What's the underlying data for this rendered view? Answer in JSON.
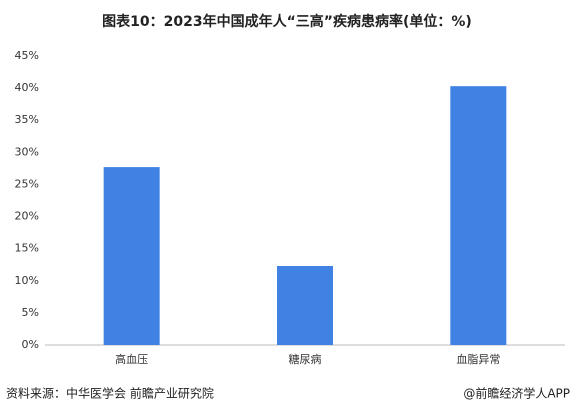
{
  "chart_data": {
    "type": "bar",
    "title": "图表10：2023年中国成年人“三高”疾病患病率(单位：%)",
    "categories": [
      "高血压",
      "糖尿病",
      "血脂异常"
    ],
    "values": [
      27.7,
      12.3,
      40.3
    ],
    "color": "#3f82e3",
    "ylim": [
      0,
      45
    ],
    "yticks": [
      {
        "value": 0,
        "label": "0%"
      },
      {
        "value": 5,
        "label": "5%"
      },
      {
        "value": 10,
        "label": "10%"
      },
      {
        "value": 15,
        "label": "15%"
      },
      {
        "value": 20,
        "label": "20%"
      },
      {
        "value": 25,
        "label": "25%"
      },
      {
        "value": 30,
        "label": "30%"
      },
      {
        "value": 35,
        "label": "35%"
      },
      {
        "value": 40,
        "label": "40%"
      },
      {
        "value": 45,
        "label": "45%"
      }
    ],
    "grid": false,
    "source": "资料来源：中华医学会 前瞻产业研究院",
    "credit": "@前瞻经济学人APP"
  }
}
